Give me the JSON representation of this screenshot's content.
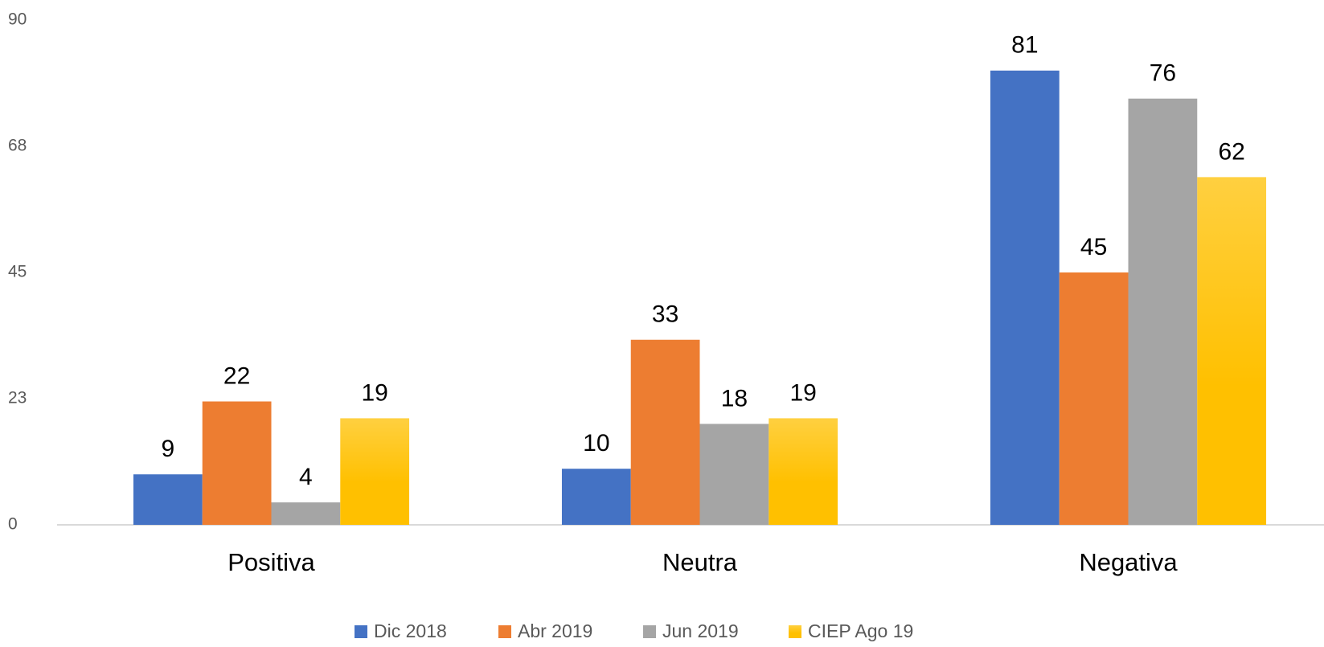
{
  "chart_data": {
    "type": "bar",
    "categories": [
      "Positiva",
      "Neutra",
      "Negativa"
    ],
    "series": [
      {
        "name": "Dic 2018",
        "color": "#4472c4",
        "values": [
          9,
          10,
          81
        ]
      },
      {
        "name": "Abr 2019",
        "color": "#ed7d31",
        "values": [
          22,
          33,
          45
        ]
      },
      {
        "name": "Jun 2019",
        "color": "#a5a5a5",
        "values": [
          4,
          18,
          76
        ]
      },
      {
        "name": "CIEP Ago 19",
        "color": "#ffc000",
        "values": [
          19,
          19,
          62
        ]
      }
    ],
    "ylim": [
      0,
      90
    ],
    "yticks": [
      0,
      {
        "value": 22.5,
        "label": "23"
      },
      45,
      {
        "value": 67.5,
        "label": "68"
      },
      90
    ],
    "grid": false,
    "legend": "bottom"
  }
}
